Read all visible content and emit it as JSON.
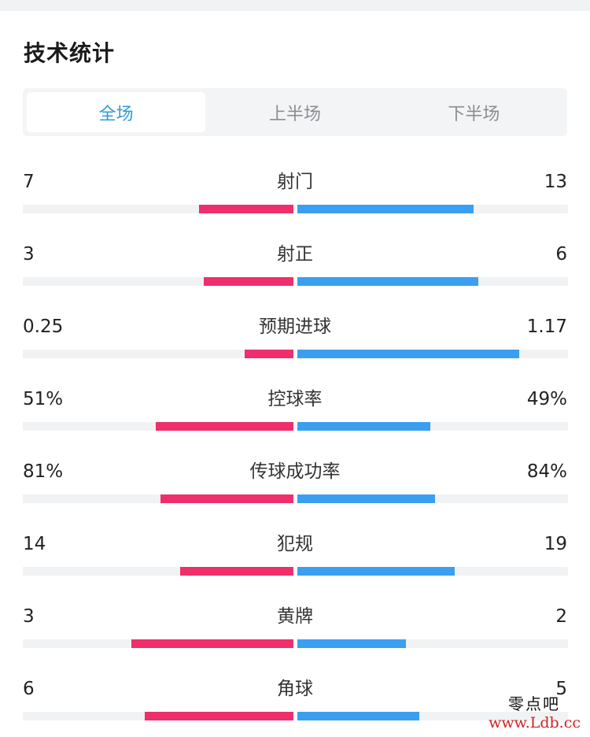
{
  "title": "技术统计",
  "tabs": [
    {
      "label": "全场",
      "active": true
    },
    {
      "label": "上半场",
      "active": false
    },
    {
      "label": "下半场",
      "active": false
    }
  ],
  "colors": {
    "home": "#ee2f6c",
    "away": "#3a9ff0",
    "track": "#f1f2f4",
    "active_tab": "#2f9bd9"
  },
  "stats": [
    {
      "label": "射门",
      "home": "7",
      "away": "13",
      "home_fill": 0.35,
      "away_fill": 0.65
    },
    {
      "label": "射正",
      "home": "3",
      "away": "6",
      "home_fill": 0.33,
      "away_fill": 0.67
    },
    {
      "label": "预期进球",
      "home": "0.25",
      "away": "1.17",
      "home_fill": 0.18,
      "away_fill": 0.82
    },
    {
      "label": "控球率",
      "home": "51%",
      "away": "49%",
      "home_fill": 0.51,
      "away_fill": 0.49
    },
    {
      "label": "传球成功率",
      "home": "81%",
      "away": "84%",
      "home_fill": 0.49,
      "away_fill": 0.51
    },
    {
      "label": "犯规",
      "home": "14",
      "away": "19",
      "home_fill": 0.42,
      "away_fill": 0.58
    },
    {
      "label": "黄牌",
      "home": "3",
      "away": "2",
      "home_fill": 0.6,
      "away_fill": 0.4
    },
    {
      "label": "角球",
      "home": "6",
      "away": "5",
      "home_fill": 0.55,
      "away_fill": 0.45
    }
  ],
  "watermark": {
    "name": "零点吧",
    "url": "www.Ldb.cc"
  }
}
